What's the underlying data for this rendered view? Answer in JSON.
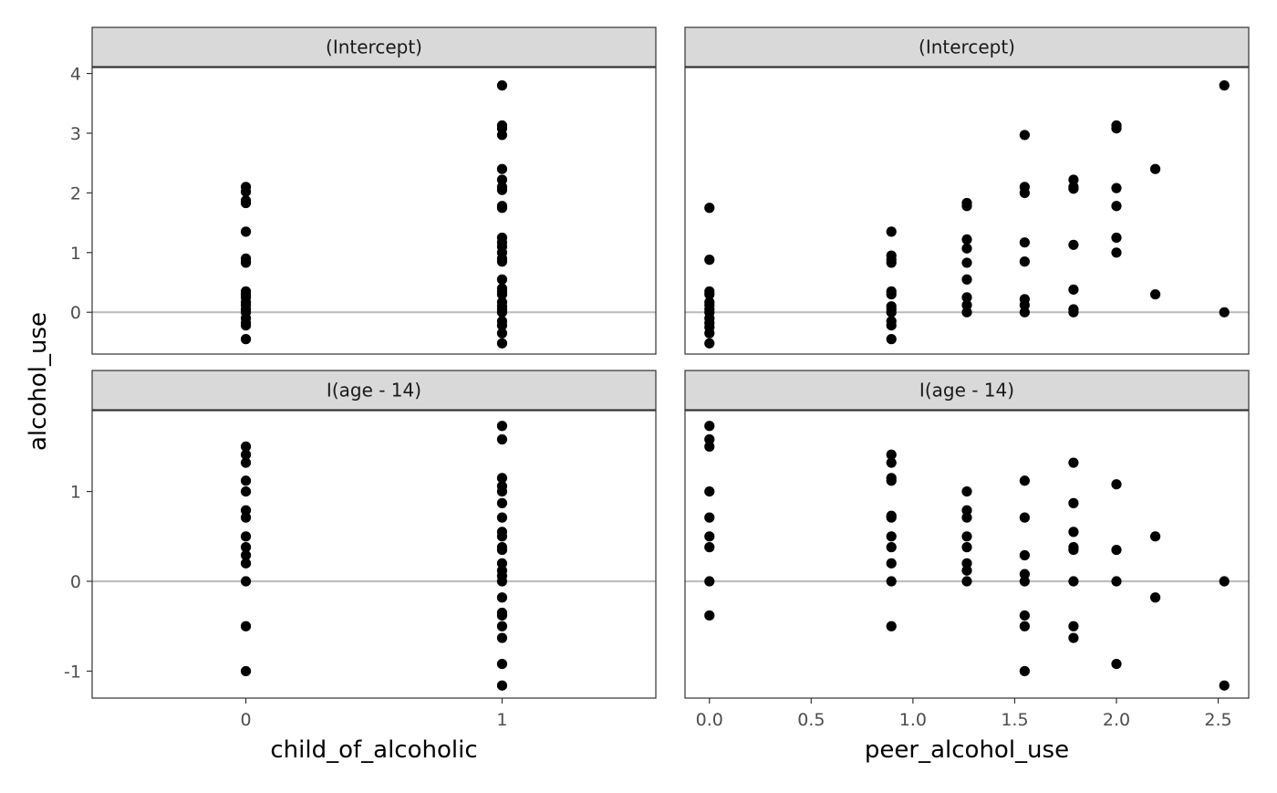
{
  "chart_data": {
    "type": "scatter",
    "ylabel": "alcohol_use",
    "xlabels": [
      "child_of_alcoholic",
      "peer_alcohol_use"
    ],
    "rows": [
      {
        "strip": "(Intercept)",
        "yticks": [
          0,
          1,
          2,
          3,
          4
        ],
        "ylim": [
          -0.7,
          4.1
        ]
      },
      {
        "strip": "I(age - 14)",
        "yticks": [
          -1,
          0,
          1
        ],
        "ylim": [
          -1.3,
          1.9
        ]
      }
    ],
    "columns": [
      {
        "xlabel": "child_of_alcoholic",
        "xticks": [
          "0",
          "1"
        ],
        "xtick_values": [
          0,
          1
        ],
        "xlim": [
          -0.6,
          1.6
        ]
      },
      {
        "xlabel": "peer_alcohol_use",
        "xticks": [
          "0.0",
          "0.5",
          "1.0",
          "1.5",
          "2.0",
          "2.5"
        ],
        "xtick_values": [
          0,
          0.5,
          1.0,
          1.5,
          2.0,
          2.5
        ],
        "xlim": [
          -0.12,
          2.65
        ]
      }
    ],
    "panels": [
      {
        "row": 0,
        "col": 0,
        "points": [
          [
            0,
            2.1
          ],
          [
            0,
            2.02
          ],
          [
            0,
            1.87
          ],
          [
            0,
            1.83
          ],
          [
            0,
            1.35
          ],
          [
            0,
            0.9
          ],
          [
            0,
            0.85
          ],
          [
            0,
            0.83
          ],
          [
            0,
            0.35
          ],
          [
            0,
            0.3
          ],
          [
            0,
            0.25
          ],
          [
            0,
            0.17
          ],
          [
            0,
            0.12
          ],
          [
            0,
            0.05
          ],
          [
            0,
            0
          ],
          [
            0,
            -0.1
          ],
          [
            0,
            -0.18
          ],
          [
            0,
            -0.22
          ],
          [
            0,
            -0.45
          ],
          [
            1,
            3.8
          ],
          [
            1,
            3.13
          ],
          [
            1,
            3.08
          ],
          [
            1,
            2.97
          ],
          [
            1,
            2.4
          ],
          [
            1,
            2.22
          ],
          [
            1,
            2.1
          ],
          [
            1,
            2.05
          ],
          [
            1,
            1.78
          ],
          [
            1,
            1.75
          ],
          [
            1,
            1.25
          ],
          [
            1,
            1.17
          ],
          [
            1,
            1.1
          ],
          [
            1,
            1.0
          ],
          [
            1,
            0.9
          ],
          [
            1,
            0.85
          ],
          [
            1,
            0.55
          ],
          [
            1,
            0.4
          ],
          [
            1,
            0.35
          ],
          [
            1,
            0.3
          ],
          [
            1,
            0.17
          ],
          [
            1,
            0.1
          ],
          [
            1,
            0.05
          ],
          [
            1,
            0
          ],
          [
            1,
            -0.15
          ],
          [
            1,
            -0.22
          ],
          [
            1,
            -0.35
          ],
          [
            1,
            -0.52
          ]
        ]
      },
      {
        "row": 0,
        "col": 1,
        "points": [
          [
            0,
            1.75
          ],
          [
            0,
            0.88
          ],
          [
            0,
            0.35
          ],
          [
            0,
            0.3
          ],
          [
            0,
            0.17
          ],
          [
            0,
            0.12
          ],
          [
            0,
            0.05
          ],
          [
            0,
            0
          ],
          [
            0,
            -0.1
          ],
          [
            0,
            -0.18
          ],
          [
            0,
            -0.25
          ],
          [
            0,
            -0.35
          ],
          [
            0,
            -0.52
          ],
          [
            0.894,
            1.35
          ],
          [
            0.894,
            0.95
          ],
          [
            0.894,
            0.88
          ],
          [
            0.894,
            0.83
          ],
          [
            0.894,
            0.35
          ],
          [
            0.894,
            0.3
          ],
          [
            0.894,
            0.1
          ],
          [
            0.894,
            0.05
          ],
          [
            0.894,
            0
          ],
          [
            0.894,
            -0.15
          ],
          [
            0.894,
            -0.22
          ],
          [
            0.894,
            -0.45
          ],
          [
            1.265,
            1.83
          ],
          [
            1.265,
            1.78
          ],
          [
            1.265,
            1.22
          ],
          [
            1.265,
            1.07
          ],
          [
            1.265,
            0.83
          ],
          [
            1.265,
            0.55
          ],
          [
            1.265,
            0.25
          ],
          [
            1.265,
            0.12
          ],
          [
            1.265,
            0
          ],
          [
            1.549,
            2.97
          ],
          [
            1.549,
            2.1
          ],
          [
            1.549,
            2.0
          ],
          [
            1.549,
            1.17
          ],
          [
            1.549,
            0.85
          ],
          [
            1.549,
            0.22
          ],
          [
            1.549,
            0.12
          ],
          [
            1.549,
            0
          ],
          [
            1.789,
            2.22
          ],
          [
            1.789,
            2.1
          ],
          [
            1.789,
            2.07
          ],
          [
            1.789,
            1.13
          ],
          [
            1.789,
            0.38
          ],
          [
            1.789,
            0.05
          ],
          [
            1.789,
            0
          ],
          [
            2.0,
            3.13
          ],
          [
            2.0,
            3.08
          ],
          [
            2.0,
            2.08
          ],
          [
            2.0,
            1.78
          ],
          [
            2.0,
            1.25
          ],
          [
            2.0,
            1.0
          ],
          [
            2.191,
            2.4
          ],
          [
            2.191,
            0.3
          ],
          [
            2.53,
            3.8
          ],
          [
            2.53,
            0
          ]
        ]
      },
      {
        "row": 1,
        "col": 0,
        "points": [
          [
            0,
            1.5
          ],
          [
            0,
            1.41
          ],
          [
            0,
            1.32
          ],
          [
            0,
            1.12
          ],
          [
            0,
            1.0
          ],
          [
            0,
            0.79
          ],
          [
            0,
            0.71
          ],
          [
            0,
            0.5
          ],
          [
            0,
            0.38
          ],
          [
            0,
            0.29
          ],
          [
            0,
            0.2
          ],
          [
            0,
            0
          ],
          [
            0,
            -0.5
          ],
          [
            0,
            -1.0
          ],
          [
            1,
            1.73
          ],
          [
            1,
            1.58
          ],
          [
            1,
            1.15
          ],
          [
            1,
            1.06
          ],
          [
            1,
            1.0
          ],
          [
            1,
            0.87
          ],
          [
            1,
            0.71
          ],
          [
            1,
            0.55
          ],
          [
            1,
            0.5
          ],
          [
            1,
            0.38
          ],
          [
            1,
            0.35
          ],
          [
            1,
            0.2
          ],
          [
            1,
            0.12
          ],
          [
            1,
            0.06
          ],
          [
            1,
            0
          ],
          [
            1,
            -0.18
          ],
          [
            1,
            -0.35
          ],
          [
            1,
            -0.38
          ],
          [
            1,
            -0.5
          ],
          [
            1,
            -0.63
          ],
          [
            1,
            -0.92
          ],
          [
            1,
            -1.16
          ]
        ]
      },
      {
        "row": 1,
        "col": 1,
        "points": [
          [
            0,
            1.73
          ],
          [
            0,
            1.58
          ],
          [
            0,
            1.5
          ],
          [
            0,
            1.0
          ],
          [
            0,
            0.71
          ],
          [
            0,
            0.5
          ],
          [
            0,
            0.38
          ],
          [
            0,
            0
          ],
          [
            0,
            -0.38
          ],
          [
            0.894,
            1.41
          ],
          [
            0.894,
            1.32
          ],
          [
            0.894,
            1.15
          ],
          [
            0.894,
            1.12
          ],
          [
            0.894,
            0.73
          ],
          [
            0.894,
            0.71
          ],
          [
            0.894,
            0.5
          ],
          [
            0.894,
            0.38
          ],
          [
            0.894,
            0.2
          ],
          [
            0.894,
            0
          ],
          [
            0.894,
            -0.5
          ],
          [
            1.265,
            1.0
          ],
          [
            1.265,
            0.79
          ],
          [
            1.265,
            0.71
          ],
          [
            1.265,
            0.5
          ],
          [
            1.265,
            0.38
          ],
          [
            1.265,
            0.2
          ],
          [
            1.265,
            0.12
          ],
          [
            1.265,
            0
          ],
          [
            1.549,
            1.12
          ],
          [
            1.549,
            0.71
          ],
          [
            1.549,
            0.29
          ],
          [
            1.549,
            0.08
          ],
          [
            1.549,
            0
          ],
          [
            1.549,
            -0.38
          ],
          [
            1.549,
            -0.5
          ],
          [
            1.549,
            -1.0
          ],
          [
            1.789,
            1.32
          ],
          [
            1.789,
            0.87
          ],
          [
            1.789,
            0.55
          ],
          [
            1.789,
            0.38
          ],
          [
            1.789,
            0.35
          ],
          [
            1.789,
            0
          ],
          [
            1.789,
            -0.5
          ],
          [
            1.789,
            -0.63
          ],
          [
            2.0,
            1.08
          ],
          [
            2.0,
            0.35
          ],
          [
            2.0,
            0
          ],
          [
            2.0,
            -0.92
          ],
          [
            2.191,
            0.5
          ],
          [
            2.191,
            -0.18
          ],
          [
            2.53,
            0
          ],
          [
            2.53,
            -1.16
          ]
        ]
      }
    ],
    "reference_line_y": 0,
    "grid": false,
    "colors": {
      "point": "#000000",
      "strip_fill": "#d9d9d9",
      "zero_line": "#bebebe",
      "border": "#333333"
    }
  }
}
